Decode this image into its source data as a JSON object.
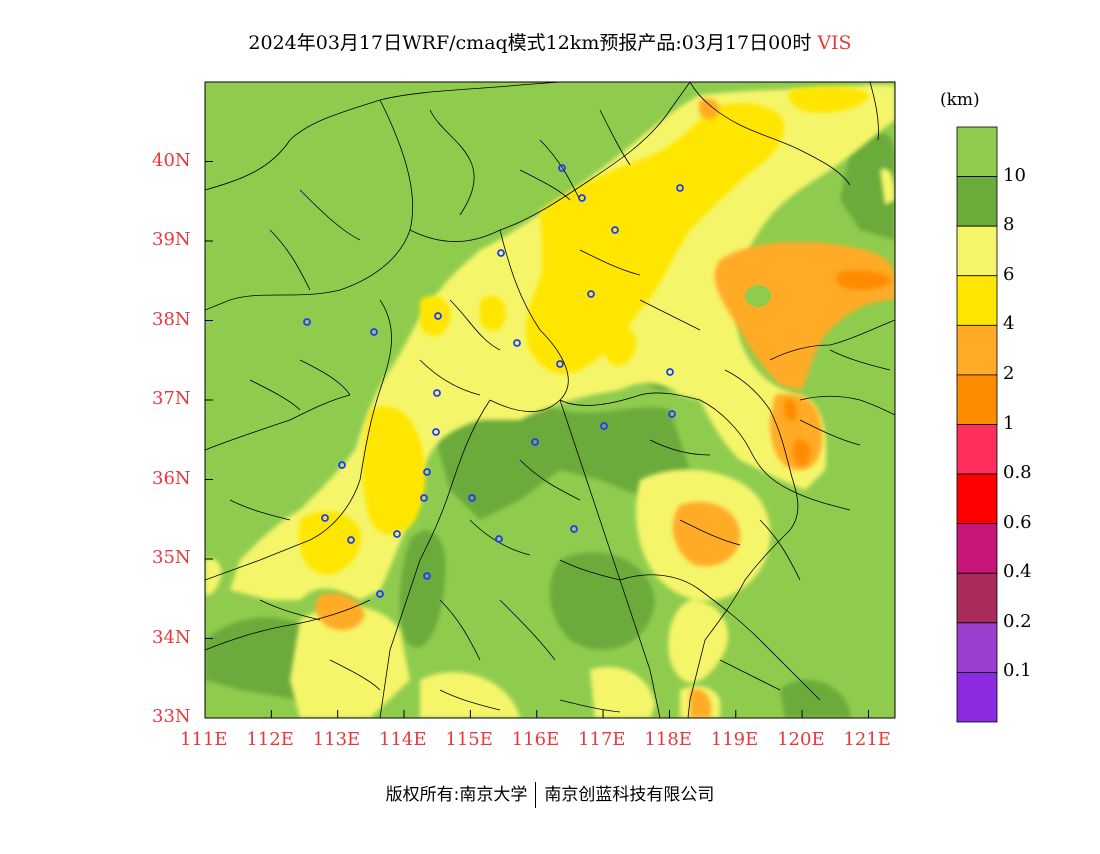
{
  "title": {
    "text": "2024年03月17日WRF/cmaq模式12km预报产品:03月17日00时",
    "variable": "VIS"
  },
  "map": {
    "lon_labels": [
      "111E",
      "112E",
      "113E",
      "114E",
      "115E",
      "116E",
      "117E",
      "118E",
      "119E",
      "120E",
      "121E"
    ],
    "lat_labels": [
      "40N",
      "39N",
      "38N",
      "37N",
      "36N",
      "35N",
      "34N",
      "33N"
    ],
    "lon_range": [
      111,
      121.4
    ],
    "lat_range": [
      33,
      41
    ],
    "colors": {
      "vis_gt10": "#8fcc4e",
      "vis_8_10": "#6bab3a",
      "vis_6_8": "#f5f56a",
      "vis_4_6": "#ffe600",
      "vis_2_4": "#ffab28",
      "vis_1_2": "#ff8c00",
      "border": "#000000",
      "station": "#1f3cff",
      "axis_text": "#e8383b"
    }
  },
  "colorbar": {
    "unit": "(km)",
    "labels": [
      "10",
      "8",
      "6",
      "4",
      "2",
      "1",
      "0.8",
      "0.6",
      "0.4",
      "0.2",
      "0.1"
    ],
    "colors": [
      "#8fcc4e",
      "#6bab3a",
      "#f5f56a",
      "#ffe600",
      "#ffab28",
      "#ff8c00",
      "#ff2e5a",
      "#ff0000",
      "#c8157a",
      "#a82b5a",
      "#9b3fd0",
      "#8a2be2"
    ]
  },
  "footer": {
    "left": "版权所有:南京大学",
    "right": "南京创蓝科技有限公司"
  }
}
